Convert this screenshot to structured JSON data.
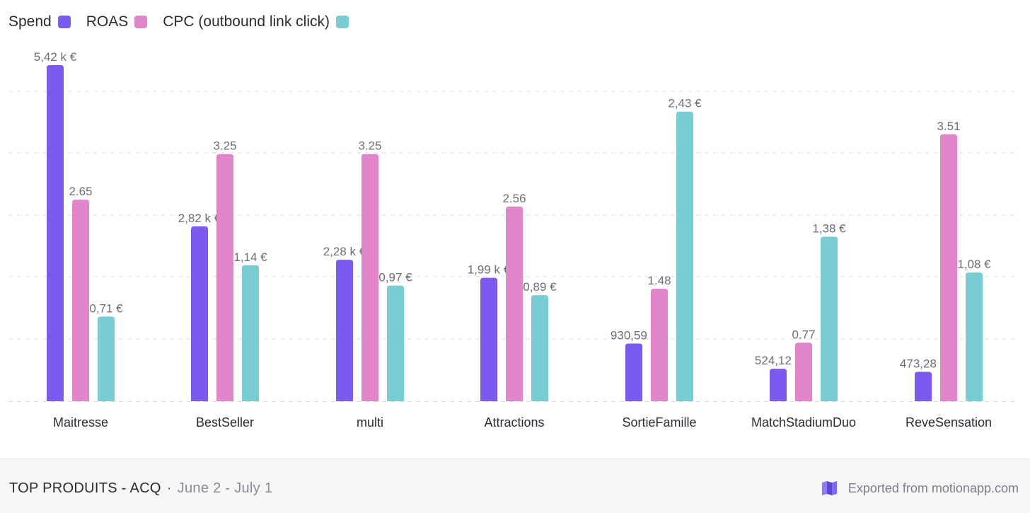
{
  "legend": {
    "spend_label": "Spend",
    "roas_label": "ROAS",
    "cpc_label": "CPC (outbound link click)"
  },
  "colors": {
    "spend": "#7b5aef",
    "roas": "#e286cb",
    "cpc": "#77cdd2",
    "grid": "#dcdcdf",
    "label": "#6d6d77",
    "axis_text": "#2b2b33"
  },
  "footer": {
    "title": "TOP PRODUITS - ACQ",
    "separator": "·",
    "date_range": "June 2 - July 1",
    "export_text": "Exported from motionapp.com"
  },
  "chart_data": {
    "type": "bar",
    "categories": [
      "Maitresse",
      "BestSeller",
      "multi",
      "Attractions",
      "SortieFamille",
      "MatchStadiumDuo",
      "ReveSensation"
    ],
    "series": [
      {
        "name": "Spend",
        "key": "spend",
        "values": [
          5420,
          2820,
          2280,
          1990,
          930.59,
          524.12,
          473.28
        ],
        "labels": [
          "5,42 k €",
          "2,82 k €",
          "2,28 k €",
          "1,99 k €",
          "930,59 €",
          "524,12 €",
          "473,28 €"
        ],
        "max": 5420
      },
      {
        "name": "ROAS",
        "key": "roas",
        "values": [
          2.65,
          3.25,
          3.25,
          2.56,
          1.48,
          0.77,
          3.51
        ],
        "labels": [
          "2.65",
          "3.25",
          "3.25",
          "2.56",
          "1.48",
          "0.77",
          "3.51"
        ],
        "max": 4.42
      },
      {
        "name": "CPC (outbound link click)",
        "key": "cpc",
        "values": [
          0.71,
          1.14,
          0.97,
          0.89,
          2.43,
          1.38,
          1.08
        ],
        "labels": [
          "0,71 €",
          "1,14 €",
          "0,97 €",
          "0,89 €",
          "2,43 €",
          "1,38 €",
          "1,08 €"
        ],
        "max": 2.82
      }
    ],
    "grid": true,
    "legend_position": "top-left"
  }
}
